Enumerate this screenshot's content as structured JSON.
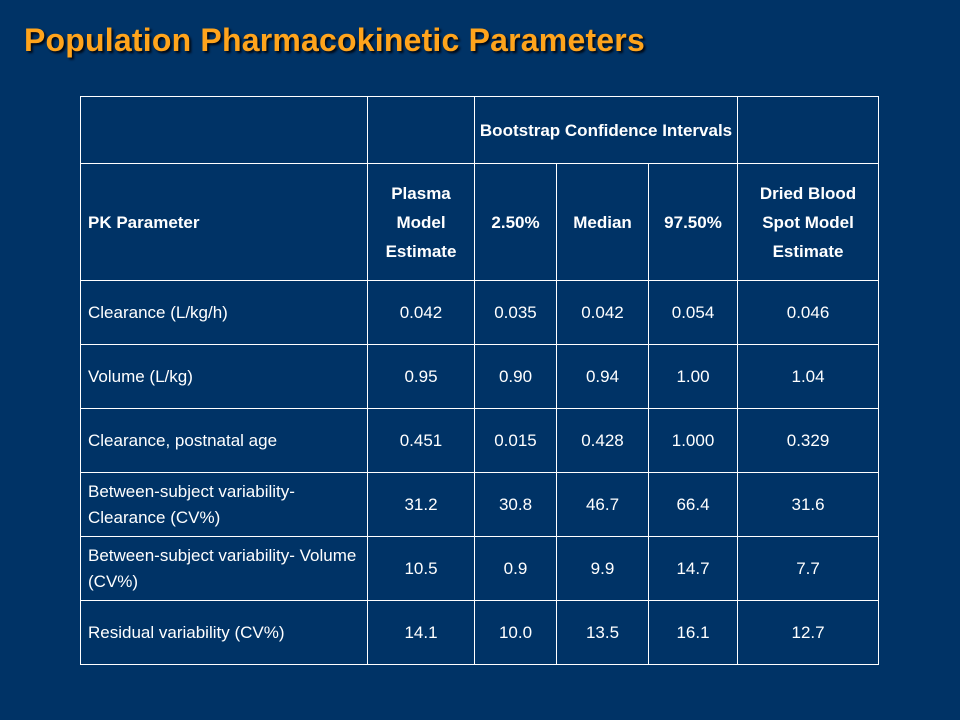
{
  "slide": {
    "title": "Population Pharmacokinetic Parameters"
  },
  "table": {
    "group_header": "Bootstrap Confidence Intervals",
    "columns": [
      "PK Parameter",
      "Plasma Model Estimate",
      "2.50%",
      "Median",
      "97.50%",
      "Dried Blood Spot Model Estimate"
    ],
    "rows": [
      {
        "parameter": "Clearance (L/kg/h)",
        "values": [
          "0.042",
          "0.035",
          "0.042",
          "0.054",
          "0.046"
        ]
      },
      {
        "parameter": "Volume (L/kg)",
        "values": [
          "0.95",
          "0.90",
          "0.94",
          "1.00",
          "1.04"
        ]
      },
      {
        "parameter": "Clearance, postnatal age",
        "values": [
          "0.451",
          "0.015",
          "0.428",
          "1.000",
          "0.329"
        ]
      },
      {
        "parameter": "Between-subject variability- Clearance (CV%)",
        "values": [
          "31.2",
          "30.8",
          "46.7",
          "66.4",
          "31.6"
        ]
      },
      {
        "parameter": "Between-subject variability- Volume (CV%)",
        "values": [
          "10.5",
          "0.9",
          "9.9",
          "14.7",
          "7.7"
        ]
      },
      {
        "parameter": "Residual variability (CV%)",
        "values": [
          "14.1",
          "10.0",
          "13.5",
          "16.1",
          "12.7"
        ]
      }
    ]
  },
  "colors": {
    "background": "#003366",
    "title": "#FFA41C",
    "text": "#FFFFFF",
    "grid": "#FFFFFF"
  }
}
